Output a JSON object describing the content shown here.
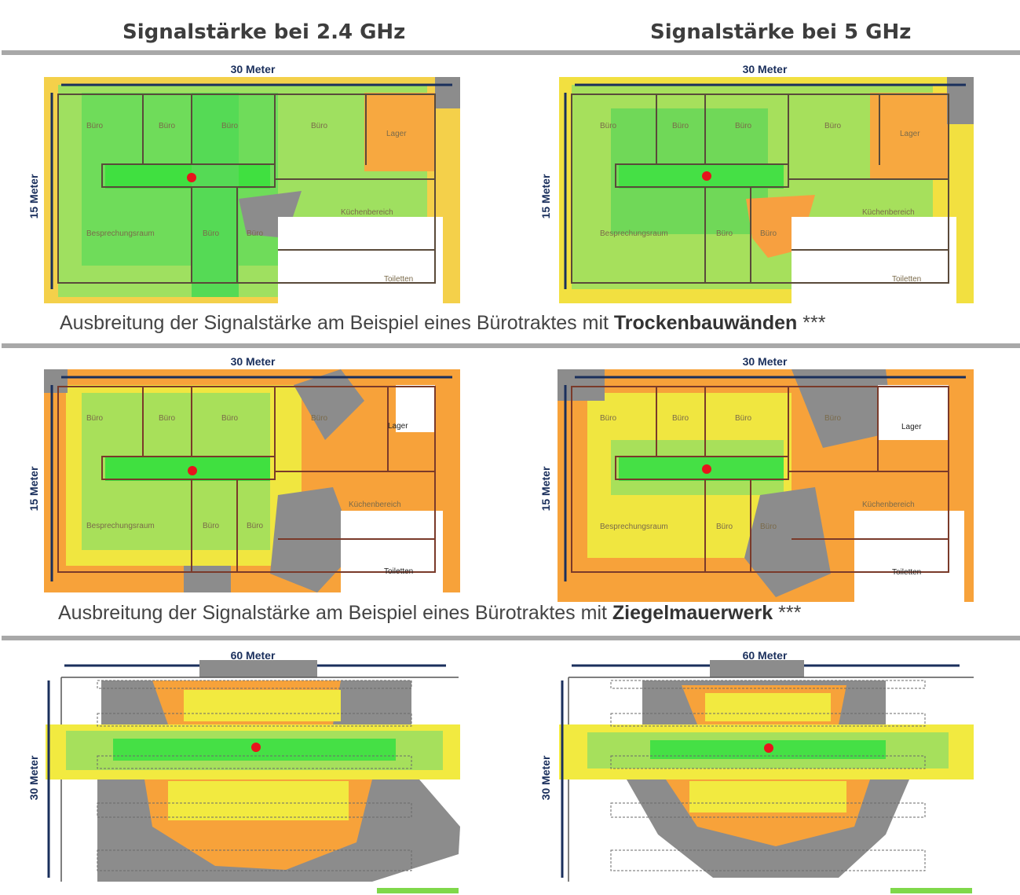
{
  "headings": {
    "left": "Signalstärke bei 2.4 GHz",
    "right": "Signalstärke bei 5 GHz"
  },
  "sections": [
    {
      "caption_prefix": "Ausbreitung der Signalstärke am Beispiel eines Bürotraktes mit ",
      "caption_bold": "Trockenbauwänden",
      "caption_suffix": " ***",
      "width_label": "30 Meter",
      "height_label": "15 Meter"
    },
    {
      "caption_prefix": "Ausbreitung der Signalstärke am Beispiel eines Bürotraktes mit ",
      "caption_bold": "Ziegelmauerwerk",
      "caption_suffix": " ***",
      "width_label": "30 Meter",
      "height_label": "15 Meter"
    },
    {
      "width_label": "60 Meter",
      "height_label": "30 Meter"
    }
  ],
  "rooms": {
    "buero": "Büro",
    "lager": "Lager",
    "kueche": "Küchenbereich",
    "besprechung": "Besprechungsraum",
    "toiletten": "Toiletten"
  },
  "legend_colors": {
    "strong": "#3cdc3c",
    "good": "#8fe84a",
    "medium": "#f2f040",
    "weak": "#f7a23a",
    "none": "#8c8c8c",
    "access_point": "#e8141c"
  }
}
